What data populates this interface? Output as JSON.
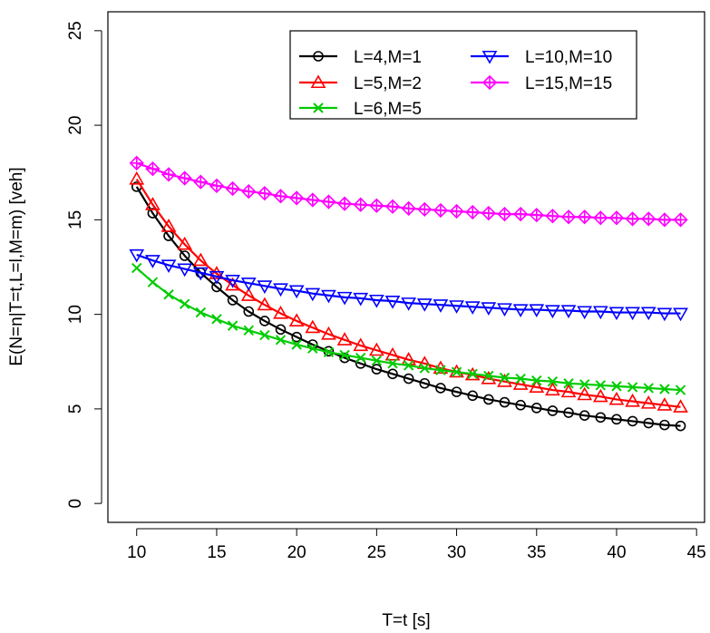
{
  "chart_data": {
    "type": "line",
    "title": "",
    "xlabel": "T=t [s]",
    "ylabel": "E(N=n|T=t,L=l,M=m) [veh]",
    "xlim": [
      8.2,
      45.5
    ],
    "ylim": [
      -1.0,
      26.0
    ],
    "xticks": [
      10,
      15,
      20,
      25,
      30,
      35,
      40,
      45
    ],
    "yticks": [
      0,
      5,
      10,
      15,
      20,
      25
    ],
    "grid": false,
    "legend_position": "top-right",
    "x": [
      10,
      11,
      12,
      13,
      14,
      15,
      16,
      17,
      18,
      19,
      20,
      21,
      22,
      23,
      24,
      25,
      26,
      27,
      28,
      29,
      30,
      31,
      32,
      33,
      34,
      35,
      36,
      37,
      38,
      39,
      40,
      41,
      42,
      43,
      44
    ],
    "series": [
      {
        "name": "L=4,M=1",
        "color": "#000000",
        "marker": "circle",
        "values": [
          16.75,
          15.35,
          14.15,
          13.1,
          12.2,
          11.45,
          10.75,
          10.15,
          9.65,
          9.2,
          8.8,
          8.4,
          8.05,
          7.7,
          7.4,
          7.1,
          6.85,
          6.6,
          6.35,
          6.1,
          5.9,
          5.7,
          5.5,
          5.35,
          5.2,
          5.05,
          4.9,
          4.8,
          4.65,
          4.55,
          4.45,
          4.35,
          4.25,
          4.15,
          4.1
        ]
      },
      {
        "name": "L=5,M=2",
        "color": "#ff0000",
        "marker": "triangle-up",
        "values": [
          17.15,
          15.8,
          14.65,
          13.7,
          12.85,
          12.15,
          11.55,
          11.0,
          10.5,
          10.05,
          9.65,
          9.3,
          8.95,
          8.65,
          8.35,
          8.1,
          7.85,
          7.6,
          7.4,
          7.15,
          6.95,
          6.8,
          6.6,
          6.45,
          6.3,
          6.15,
          6.0,
          5.9,
          5.75,
          5.65,
          5.5,
          5.4,
          5.3,
          5.2,
          5.1
        ]
      },
      {
        "name": "L=6,M=5",
        "color": "#00cc00",
        "marker": "cross",
        "values": [
          12.45,
          11.7,
          11.05,
          10.55,
          10.1,
          9.75,
          9.4,
          9.15,
          8.9,
          8.65,
          8.4,
          8.2,
          8.0,
          7.85,
          7.7,
          7.55,
          7.4,
          7.3,
          7.15,
          7.05,
          6.95,
          6.85,
          6.75,
          6.65,
          6.6,
          6.5,
          6.45,
          6.35,
          6.3,
          6.25,
          6.2,
          6.15,
          6.1,
          6.05,
          6.0
        ]
      },
      {
        "name": "L=10,M=10",
        "color": "#0000ff",
        "marker": "triangle-down",
        "values": [
          13.15,
          12.85,
          12.6,
          12.4,
          12.2,
          12.0,
          11.8,
          11.65,
          11.5,
          11.35,
          11.25,
          11.1,
          11.0,
          10.9,
          10.85,
          10.75,
          10.7,
          10.6,
          10.55,
          10.5,
          10.45,
          10.4,
          10.35,
          10.3,
          10.25,
          10.25,
          10.2,
          10.2,
          10.15,
          10.15,
          10.1,
          10.1,
          10.1,
          10.05,
          10.05
        ]
      },
      {
        "name": "L=15,M=15",
        "color": "#ff00ff",
        "marker": "diamond-plus",
        "values": [
          18.0,
          17.7,
          17.4,
          17.2,
          17.0,
          16.8,
          16.65,
          16.5,
          16.4,
          16.25,
          16.15,
          16.05,
          15.95,
          15.85,
          15.8,
          15.75,
          15.7,
          15.6,
          15.55,
          15.5,
          15.45,
          15.4,
          15.35,
          15.3,
          15.3,
          15.25,
          15.2,
          15.15,
          15.15,
          15.1,
          15.1,
          15.05,
          15.05,
          15.0,
          15.0
        ]
      }
    ]
  }
}
